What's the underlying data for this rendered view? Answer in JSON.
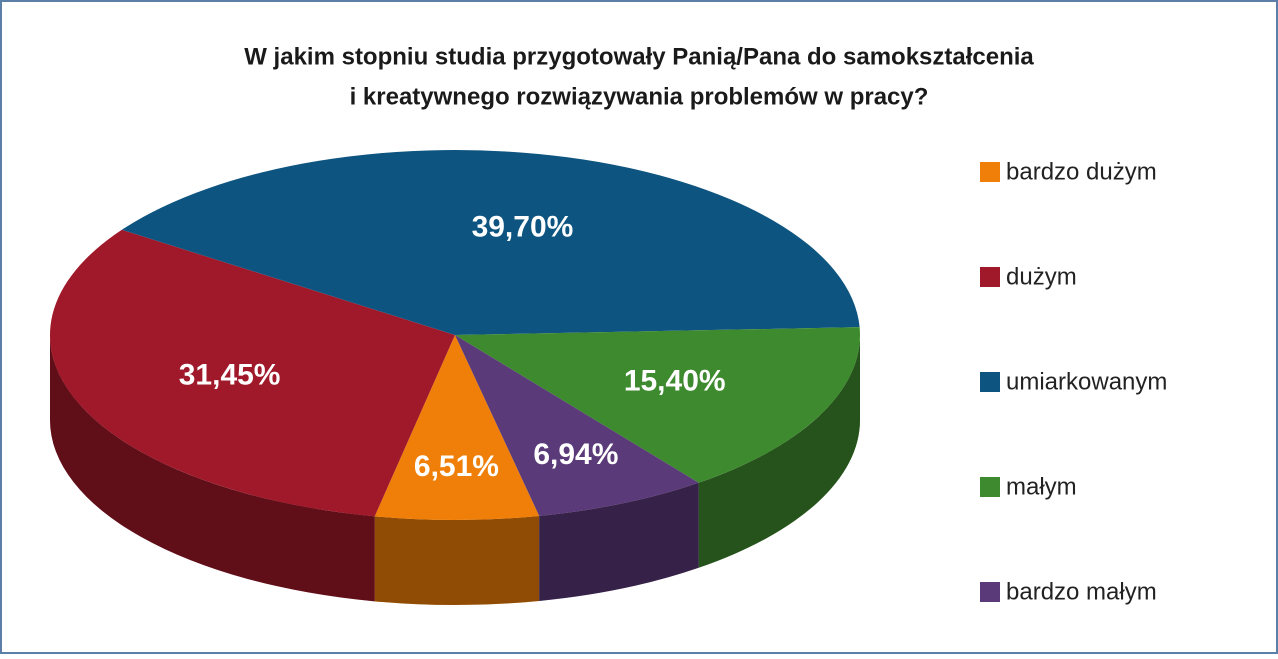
{
  "chart_data": {
    "type": "pie",
    "title": [
      "W jakim stopniu studia przygotowały Panią/Pana do samokształcenia",
      "i kreatywnego rozwiązywania problemów w pracy?"
    ],
    "categories": [
      "bardzo dużym",
      "dużym",
      "umiarkowanym",
      "małym",
      "bardzo małym"
    ],
    "values": [
      6.51,
      31.45,
      39.7,
      15.4,
      6.94
    ],
    "value_labels": [
      "6,51%",
      "31,45%",
      "39,70%",
      "15,40%",
      "6,94%"
    ],
    "colors": [
      "#f07f09",
      "#a0192a",
      "#0d5480",
      "#3e8a2e",
      "#5a3a78"
    ],
    "legend": "right"
  }
}
